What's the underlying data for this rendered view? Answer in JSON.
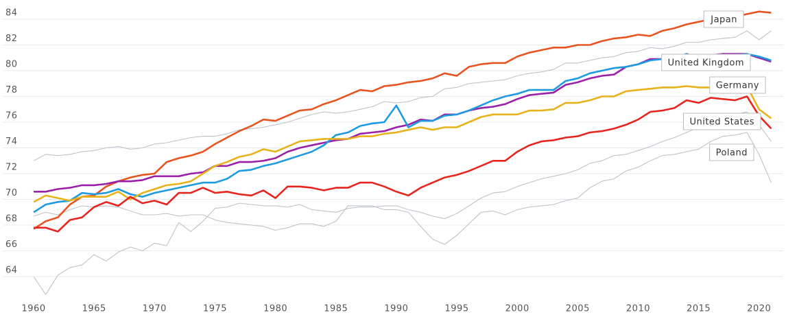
{
  "chart_data": {
    "type": "line",
    "x": [
      1960,
      1961,
      1962,
      1963,
      1964,
      1965,
      1966,
      1967,
      1968,
      1969,
      1970,
      1971,
      1972,
      1973,
      1974,
      1975,
      1976,
      1977,
      1978,
      1979,
      1980,
      1981,
      1982,
      1983,
      1984,
      1985,
      1986,
      1987,
      1988,
      1989,
      1990,
      1991,
      1992,
      1993,
      1994,
      1995,
      1996,
      1997,
      1998,
      1999,
      2000,
      2001,
      2002,
      2003,
      2004,
      2005,
      2006,
      2007,
      2008,
      2009,
      2010,
      2011,
      2012,
      2013,
      2014,
      2015,
      2016,
      2017,
      2018,
      2019,
      2020,
      2021
    ],
    "xlim": [
      1957.5,
      2022
    ],
    "xticks": [
      1960,
      1965,
      1970,
      1975,
      1980,
      1985,
      1990,
      1995,
      2000,
      2005,
      2010,
      2015,
      2020
    ],
    "ylim": [
      62,
      85
    ],
    "yticks": [
      64,
      66,
      68,
      70,
      72,
      74,
      76,
      78,
      80,
      82,
      84
    ],
    "grid": true,
    "series": [
      {
        "name": "Japan",
        "color": "#e8541f",
        "values": [
          67.7,
          68.3,
          68.6,
          69.6,
          70.2,
          70.3,
          71.0,
          71.4,
          71.7,
          71.9,
          72.0,
          72.9,
          73.2,
          73.4,
          73.7,
          74.3,
          74.8,
          75.3,
          75.7,
          76.2,
          76.1,
          76.5,
          76.9,
          77.0,
          77.4,
          77.7,
          78.1,
          78.5,
          78.4,
          78.8,
          78.9,
          79.1,
          79.2,
          79.4,
          79.8,
          79.6,
          80.3,
          80.5,
          80.6,
          80.6,
          81.1,
          81.4,
          81.6,
          81.8,
          81.8,
          82.0,
          82.0,
          82.3,
          82.5,
          82.6,
          82.8,
          82.7,
          83.1,
          83.3,
          83.6,
          83.8,
          84.0,
          84.1,
          84.2,
          84.4,
          84.6,
          84.5
        ]
      },
      {
        "name": "United Kingdom",
        "color": "#9b1fa8",
        "values": [
          70.6,
          70.6,
          70.8,
          70.9,
          71.1,
          71.1,
          71.2,
          71.4,
          71.4,
          71.5,
          71.8,
          71.8,
          71.8,
          72.0,
          72.1,
          72.6,
          72.6,
          72.9,
          72.9,
          73.0,
          73.2,
          73.7,
          74.0,
          74.2,
          74.4,
          74.6,
          74.7,
          75.1,
          75.2,
          75.3,
          75.6,
          75.8,
          76.2,
          76.1,
          76.6,
          76.6,
          76.9,
          77.1,
          77.2,
          77.4,
          77.8,
          78.1,
          78.2,
          78.3,
          78.9,
          79.1,
          79.4,
          79.6,
          79.7,
          80.3,
          80.5,
          80.9,
          80.9,
          81.0,
          81.3,
          81.0,
          81.2,
          81.3,
          81.3,
          81.3,
          81.0,
          80.7
        ]
      },
      {
        "name": "Germany",
        "color": "#1e9be0",
        "values": [
          69.0,
          69.6,
          69.8,
          69.9,
          70.5,
          70.4,
          70.5,
          70.8,
          70.4,
          70.2,
          70.5,
          70.7,
          70.9,
          71.1,
          71.3,
          71.3,
          71.6,
          72.2,
          72.3,
          72.6,
          72.8,
          73.1,
          73.4,
          73.7,
          74.2,
          75.0,
          75.2,
          75.7,
          75.9,
          76.0,
          77.3,
          75.6,
          76.1,
          76.1,
          76.5,
          76.6,
          76.9,
          77.3,
          77.7,
          78.0,
          78.2,
          78.5,
          78.5,
          78.5,
          79.2,
          79.4,
          79.8,
          80.0,
          80.2,
          80.3,
          80.5,
          80.8,
          80.9,
          80.9,
          81.3,
          80.9,
          81.1,
          81.2,
          81.2,
          81.3,
          81.1,
          80.8
        ]
      },
      {
        "name": "United States",
        "color": "#e8b21a",
        "values": [
          69.8,
          70.3,
          70.1,
          69.9,
          70.2,
          70.2,
          70.2,
          70.6,
          70.0,
          70.5,
          70.8,
          71.1,
          71.2,
          71.4,
          72.0,
          72.6,
          72.9,
          73.3,
          73.5,
          73.9,
          73.7,
          74.1,
          74.5,
          74.6,
          74.7,
          74.7,
          74.7,
          74.9,
          74.9,
          75.1,
          75.2,
          75.4,
          75.6,
          75.4,
          75.6,
          75.6,
          76.0,
          76.4,
          76.6,
          76.6,
          76.6,
          76.9,
          76.9,
          77.0,
          77.5,
          77.5,
          77.7,
          78.0,
          78.0,
          78.4,
          78.5,
          78.6,
          78.7,
          78.7,
          78.8,
          78.7,
          78.7,
          78.5,
          78.6,
          78.8,
          77.0,
          76.3
        ]
      },
      {
        "name": "Poland",
        "color": "#e8241f",
        "values": [
          67.8,
          67.8,
          67.5,
          68.4,
          68.6,
          69.4,
          69.8,
          69.5,
          70.2,
          69.7,
          69.9,
          69.6,
          70.5,
          70.5,
          70.9,
          70.5,
          70.6,
          70.4,
          70.3,
          70.7,
          70.1,
          71.0,
          71.0,
          70.9,
          70.7,
          70.9,
          70.9,
          71.3,
          71.3,
          71.0,
          70.6,
          70.3,
          70.9,
          71.3,
          71.7,
          71.9,
          72.2,
          72.6,
          73.0,
          73.0,
          73.7,
          74.2,
          74.5,
          74.6,
          74.8,
          74.9,
          75.2,
          75.3,
          75.5,
          75.8,
          76.2,
          76.8,
          76.9,
          77.1,
          77.7,
          77.5,
          77.9,
          77.8,
          77.7,
          78.0,
          76.5,
          75.5
        ]
      },
      {
        "color": "#bcc3ca",
        "values": [
          64.0,
          62.6,
          64.1,
          64.7,
          64.9,
          65.7,
          65.2,
          65.9,
          66.3,
          66.0,
          66.6,
          66.4,
          68.2,
          67.5,
          68.3,
          69.3,
          69.4,
          69.7,
          69.6,
          69.5,
          69.5,
          69.4,
          69.6,
          69.2,
          69.1,
          69.0,
          69.3,
          69.4,
          69.4,
          69.5,
          69.5,
          69.2,
          69.0,
          68.7,
          68.5,
          68.9,
          69.5,
          70.1,
          70.5,
          70.6,
          71.0,
          71.3,
          71.6,
          71.8,
          72.0,
          72.3,
          72.8,
          73.0,
          73.4,
          73.5,
          73.8,
          74.1,
          74.5,
          74.8,
          75.2,
          75.6,
          76.0,
          76.3,
          76.6,
          76.8,
          75.8,
          74.5
        ]
      },
      {
        "color": "#bcc3ca",
        "values": [
          73.0,
          73.5,
          73.4,
          73.5,
          73.7,
          73.8,
          74.0,
          74.1,
          73.9,
          74.0,
          74.3,
          74.4,
          74.6,
          74.8,
          74.9,
          74.9,
          75.1,
          75.4,
          75.5,
          75.6,
          75.8,
          76.0,
          76.3,
          76.6,
          76.8,
          76.7,
          76.8,
          77.0,
          77.2,
          77.6,
          77.5,
          77.6,
          77.9,
          78.0,
          78.6,
          78.7,
          79.0,
          79.1,
          79.2,
          79.3,
          79.6,
          79.8,
          79.9,
          80.1,
          80.6,
          80.6,
          80.8,
          81.0,
          81.1,
          81.4,
          81.5,
          81.8,
          81.7,
          81.9,
          82.2,
          82.2,
          82.4,
          82.5,
          82.6,
          83.1,
          82.4,
          83.1
        ]
      },
      {
        "color": "#bcc3ca",
        "values": [
          68.7,
          69.0,
          68.8,
          69.2,
          69.5,
          69.4,
          69.5,
          69.4,
          69.1,
          68.8,
          68.8,
          68.9,
          68.7,
          68.8,
          68.8,
          68.4,
          68.2,
          68.1,
          68.0,
          67.9,
          67.6,
          67.8,
          68.1,
          68.1,
          67.9,
          68.3,
          69.5,
          69.5,
          69.5,
          69.2,
          69.2,
          69.0,
          67.9,
          66.9,
          66.5,
          67.2,
          68.1,
          69.0,
          69.1,
          68.8,
          69.2,
          69.4,
          69.5,
          69.6,
          69.9,
          70.1,
          70.9,
          71.4,
          71.6,
          72.2,
          72.5,
          73.0,
          73.4,
          73.5,
          73.7,
          73.9,
          74.5,
          74.9,
          75.0,
          75.2,
          73.5,
          71.3
        ]
      }
    ]
  }
}
